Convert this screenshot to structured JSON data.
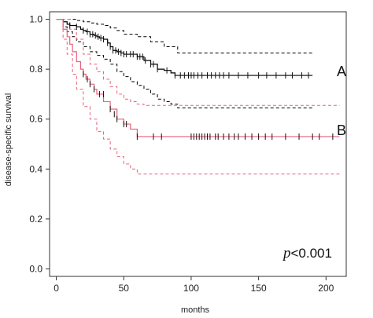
{
  "chart_data": {
    "type": "line",
    "xlabel": "months",
    "ylabel": "disease-specific survival",
    "xlim": [
      -5,
      215
    ],
    "ylim": [
      -0.03,
      1.03
    ],
    "xticks": [
      0,
      50,
      100,
      150,
      200
    ],
    "yticks": [
      0.0,
      0.2,
      0.4,
      0.6,
      0.8,
      1.0
    ],
    "xtick_labels": [
      "0",
      "50",
      "100",
      "150",
      "200"
    ],
    "ytick_labels": [
      "0.0",
      "0.2",
      "0.4",
      "0.6",
      "0.8",
      "1.0"
    ],
    "annotation": {
      "prefix": "p",
      "text": "<0.001"
    },
    "series": [
      {
        "name": "A",
        "color": "#000000",
        "x": [
          0,
          5,
          8,
          10,
          15,
          18,
          20,
          22,
          25,
          28,
          30,
          32,
          35,
          38,
          40,
          42,
          45,
          48,
          50,
          55,
          60,
          65,
          70,
          75,
          80,
          85,
          88,
          190
        ],
        "y": [
          1.0,
          0.99,
          0.98,
          0.975,
          0.97,
          0.96,
          0.955,
          0.95,
          0.94,
          0.935,
          0.93,
          0.925,
          0.92,
          0.905,
          0.89,
          0.875,
          0.87,
          0.865,
          0.86,
          0.86,
          0.85,
          0.835,
          0.82,
          0.8,
          0.795,
          0.785,
          0.775,
          0.775
        ],
        "ci_upper_x": [
          0,
          5,
          10,
          15,
          20,
          25,
          30,
          35,
          40,
          45,
          50,
          60,
          70,
          80,
          90,
          190
        ],
        "ci_upper_y": [
          1.0,
          1.0,
          1.0,
          0.995,
          0.99,
          0.985,
          0.98,
          0.975,
          0.965,
          0.955,
          0.94,
          0.93,
          0.91,
          0.89,
          0.865,
          0.865
        ],
        "ci_lower_x": [
          0,
          5,
          8,
          12,
          15,
          20,
          25,
          30,
          35,
          40,
          45,
          50,
          55,
          60,
          65,
          70,
          75,
          80,
          85,
          90,
          190
        ],
        "ci_lower_y": [
          1.0,
          0.97,
          0.95,
          0.93,
          0.91,
          0.89,
          0.87,
          0.855,
          0.84,
          0.82,
          0.79,
          0.77,
          0.75,
          0.735,
          0.72,
          0.7,
          0.68,
          0.67,
          0.66,
          0.645,
          0.645
        ],
        "censor_x": [
          10,
          15,
          20,
          23,
          25,
          27,
          29,
          31,
          33,
          35,
          38,
          40,
          42,
          44,
          46,
          48,
          50,
          52,
          55,
          57,
          60,
          62,
          64,
          66,
          70,
          72,
          75,
          82,
          88,
          92,
          95,
          98,
          100,
          102,
          105,
          108,
          112,
          115,
          118,
          121,
          124,
          128,
          135,
          142,
          150,
          156,
          163,
          170,
          175,
          182,
          187
        ],
        "censor_y": [
          0.975,
          0.97,
          0.955,
          0.95,
          0.94,
          0.94,
          0.935,
          0.93,
          0.925,
          0.92,
          0.905,
          0.89,
          0.875,
          0.875,
          0.87,
          0.865,
          0.86,
          0.86,
          0.86,
          0.86,
          0.85,
          0.85,
          0.85,
          0.835,
          0.82,
          0.82,
          0.8,
          0.795,
          0.775,
          0.775,
          0.775,
          0.775,
          0.775,
          0.775,
          0.775,
          0.775,
          0.775,
          0.775,
          0.775,
          0.775,
          0.775,
          0.775,
          0.775,
          0.775,
          0.775,
          0.775,
          0.775,
          0.775,
          0.775,
          0.775,
          0.775
        ]
      },
      {
        "name": "B",
        "color": "#e8607a",
        "x": [
          0,
          5,
          8,
          10,
          12,
          15,
          18,
          20,
          22,
          25,
          28,
          30,
          35,
          40,
          45,
          50,
          55,
          60,
          65,
          70,
          80,
          90,
          210
        ],
        "y": [
          1.0,
          0.96,
          0.93,
          0.9,
          0.87,
          0.83,
          0.8,
          0.78,
          0.76,
          0.74,
          0.72,
          0.7,
          0.67,
          0.64,
          0.6,
          0.58,
          0.56,
          0.53,
          0.53,
          0.53,
          0.53,
          0.53,
          0.53
        ],
        "ci_upper_x": [
          0,
          5,
          10,
          15,
          20,
          25,
          30,
          35,
          40,
          45,
          50,
          55,
          60,
          65,
          210
        ],
        "ci_upper_y": [
          1.0,
          1.0,
          0.96,
          0.92,
          0.86,
          0.82,
          0.79,
          0.76,
          0.73,
          0.7,
          0.68,
          0.67,
          0.66,
          0.655,
          0.655
        ],
        "ci_lower_x": [
          0,
          5,
          8,
          12,
          15,
          20,
          25,
          30,
          35,
          40,
          45,
          50,
          55,
          60,
          65,
          210
        ],
        "ci_lower_y": [
          1.0,
          0.92,
          0.86,
          0.78,
          0.72,
          0.65,
          0.6,
          0.55,
          0.52,
          0.48,
          0.45,
          0.42,
          0.4,
          0.38,
          0.38,
          0.38
        ],
        "censor_x": [
          20,
          23,
          25,
          28,
          32,
          35,
          40,
          43,
          45,
          50,
          52,
          60,
          72,
          78,
          100,
          102,
          104,
          106,
          108,
          110,
          112,
          114,
          118,
          120,
          124,
          128,
          132,
          135,
          140,
          145,
          150,
          155,
          160,
          170,
          180,
          190,
          195,
          205
        ],
        "censor_y": [
          0.78,
          0.76,
          0.74,
          0.72,
          0.7,
          0.7,
          0.64,
          0.62,
          0.6,
          0.58,
          0.58,
          0.53,
          0.53,
          0.53,
          0.53,
          0.53,
          0.53,
          0.53,
          0.53,
          0.53,
          0.53,
          0.53,
          0.53,
          0.53,
          0.53,
          0.53,
          0.53,
          0.53,
          0.53,
          0.53,
          0.53,
          0.53,
          0.53,
          0.53,
          0.53,
          0.53,
          0.53,
          0.53
        ]
      }
    ]
  }
}
